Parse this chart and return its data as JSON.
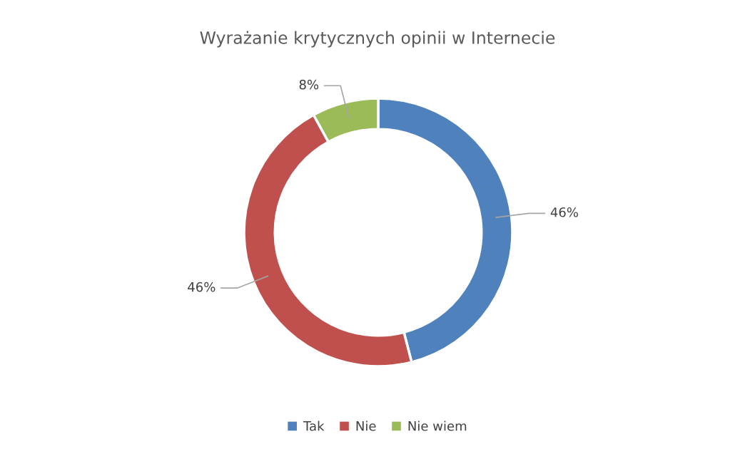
{
  "chart_data": {
    "type": "donut",
    "title": "Wyrażanie krytycznych opinii w Internecie",
    "categories": [
      "Tak",
      "Nie",
      "Nie wiem"
    ],
    "values": [
      46,
      46,
      8
    ],
    "colors": [
      "#4f81bd",
      "#c0504d",
      "#9bbb59"
    ],
    "value_labels": [
      "46%",
      "46%",
      "8%"
    ],
    "legend": "bottom"
  }
}
